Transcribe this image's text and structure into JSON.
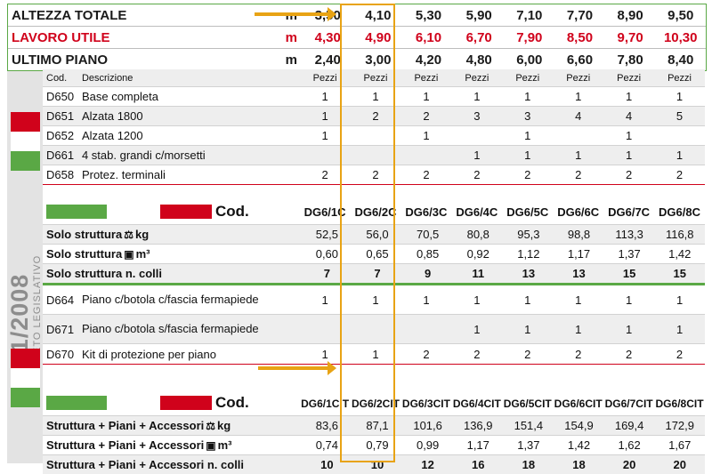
{
  "spec_rows": [
    {
      "label": "ALTEZZA TOTALE",
      "unit": "m",
      "values": [
        "3,50",
        "4,10",
        "5,30",
        "5,90",
        "7,10",
        "7,70",
        "8,90",
        "9,50"
      ],
      "color": "#1a1a1a"
    },
    {
      "label": "LAVORO UTILE",
      "unit": "m",
      "values": [
        "4,30",
        "4,90",
        "6,10",
        "6,70",
        "7,90",
        "8,50",
        "9,70",
        "10,30"
      ],
      "color": "#d0021b"
    },
    {
      "label": "ULTIMO PIANO",
      "unit": "m",
      "values": [
        "2,40",
        "3,00",
        "4,20",
        "4,80",
        "6,00",
        "6,60",
        "7,80",
        "8,40"
      ],
      "color": "#1a1a1a"
    }
  ],
  "components_header": {
    "cod": "Cod.",
    "desc": "Descrizione",
    "values": [
      "Pezzi",
      "Pezzi",
      "Pezzi",
      "Pezzi",
      "Pezzi",
      "Pezzi",
      "Pezzi",
      "Pezzi"
    ]
  },
  "components": [
    {
      "code": "D650",
      "desc": "Base completa",
      "values": [
        "1",
        "1",
        "1",
        "1",
        "1",
        "1",
        "1",
        "1"
      ]
    },
    {
      "code": "D651",
      "desc": "Alzata 1800",
      "values": [
        "1",
        "2",
        "2",
        "3",
        "3",
        "4",
        "4",
        "5"
      ]
    },
    {
      "code": "D652",
      "desc": "Alzata 1200",
      "values": [
        "1",
        "",
        "1",
        "",
        "1",
        "",
        "1",
        ""
      ]
    },
    {
      "code": "D661",
      "desc": "4 stab. grandi c/morsetti",
      "values": [
        "",
        "",
        "",
        "1",
        "1",
        "1",
        "1",
        "1"
      ]
    },
    {
      "code": "D658",
      "desc": "Protez. terminali",
      "values": [
        "2",
        "2",
        "2",
        "2",
        "2",
        "2",
        "2",
        "2"
      ]
    }
  ],
  "cod_header_1": {
    "label": "Cod.",
    "codes": [
      "DG6/1C",
      "DG6/2C",
      "DG6/3C",
      "DG6/4C",
      "DG6/5C",
      "DG6/6C",
      "DG6/7C",
      "DG6/8C"
    ]
  },
  "structure": [
    {
      "label": "Solo struttura",
      "unit": "kg",
      "icon": "weight-icon",
      "values": [
        "52,5",
        "56,0",
        "70,5",
        "80,8",
        "95,3",
        "98,8",
        "113,3",
        "116,8"
      ]
    },
    {
      "label": "Solo struttura",
      "unit": "m³",
      "icon": "volume-icon",
      "values": [
        "0,60",
        "0,65",
        "0,85",
        "0,92",
        "1,12",
        "1,17",
        "1,37",
        "1,42"
      ]
    },
    {
      "label": "Solo struttura n. colli",
      "unit": "",
      "icon": "",
      "values": [
        "7",
        "7",
        "9",
        "11",
        "13",
        "13",
        "15",
        "15"
      ]
    }
  ],
  "accessories": [
    {
      "code": "D664",
      "desc": "Piano c/botola c/fascia fermapiede",
      "values": [
        "1",
        "1",
        "1",
        "1",
        "1",
        "1",
        "1",
        "1"
      ]
    },
    {
      "code": "D671",
      "desc": "Piano c/botola s/fascia fermapiede",
      "values": [
        "",
        "",
        "",
        "1",
        "1",
        "1",
        "1",
        "1"
      ]
    },
    {
      "code": "D670",
      "desc": "Kit di protezione per piano",
      "values": [
        "1",
        "1",
        "2",
        "2",
        "2",
        "2",
        "2",
        "2"
      ]
    }
  ],
  "cod_header_2": {
    "label": "Cod.",
    "codes": [
      "DG6/1CIT",
      "DG6/2CIT",
      "DG6/3CIT",
      "DG6/4CIT",
      "DG6/5CIT",
      "DG6/6CIT",
      "DG6/7CIT",
      "DG6/8CIT"
    ]
  },
  "totals": [
    {
      "label": "Struttura + Piani + Accessori",
      "unit": "kg",
      "icon": "weight-icon",
      "values": [
        "83,6",
        "87,1",
        "101,6",
        "136,9",
        "151,4",
        "154,9",
        "169,4",
        "172,9"
      ]
    },
    {
      "label": "Struttura + Piani + Accessori",
      "unit": "m³",
      "icon": "volume-icon",
      "values": [
        "0,74",
        "0,79",
        "0,99",
        "1,17",
        "1,37",
        "1,42",
        "1,62",
        "1,67"
      ]
    },
    {
      "label": "Struttura + Piani + Accessori n. colli",
      "unit": "",
      "icon": "",
      "values": [
        "10",
        "10",
        "12",
        "16",
        "18",
        "18",
        "20",
        "20"
      ]
    }
  ],
  "side_label": {
    "number": "81/2008",
    "text": "DECRETO LEGISLATIVO"
  },
  "colors": {
    "green": "#5aa845",
    "red": "#d0021b",
    "highlight": "#e8a314",
    "band": "#e3e3e3"
  }
}
